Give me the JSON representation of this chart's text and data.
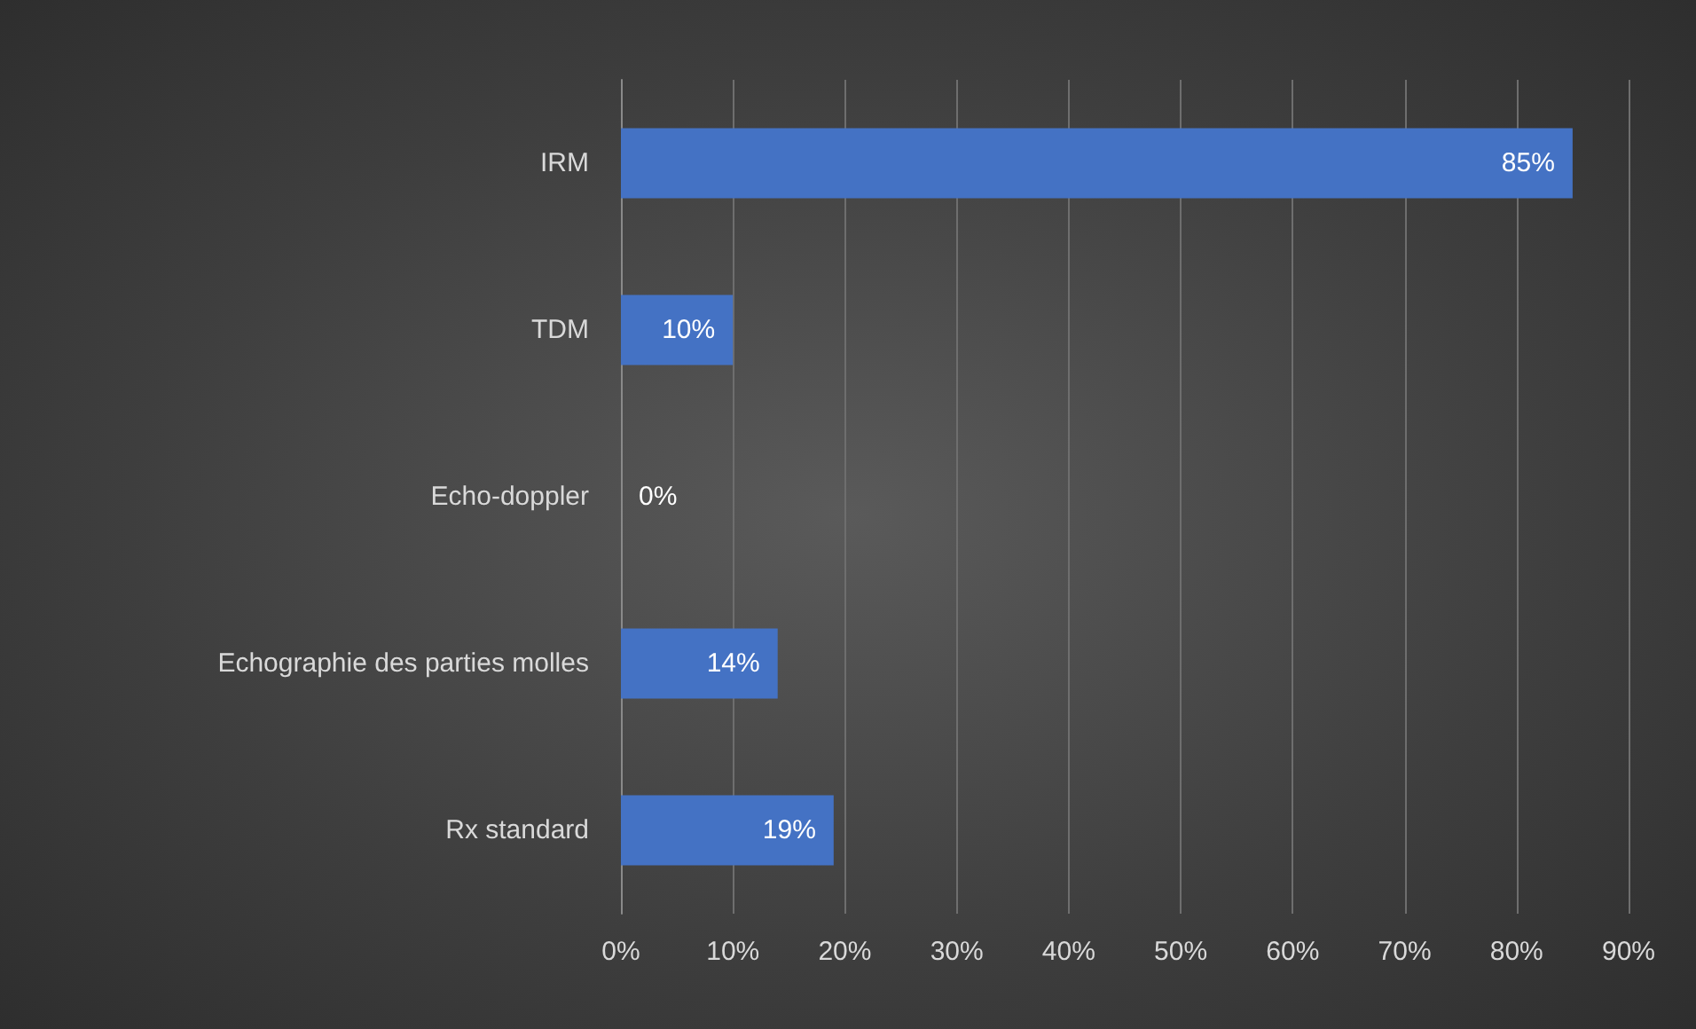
{
  "chart_data": {
    "type": "bar",
    "orientation": "horizontal",
    "categories": [
      "IRM",
      "TDM",
      "Echo-doppler",
      "Echographie des parties molles",
      "Rx standard"
    ],
    "values": [
      85,
      10,
      0,
      14,
      19
    ],
    "value_labels": [
      "85%",
      "10%",
      "0%",
      "14%",
      "19%"
    ],
    "color": "#4472c4",
    "xlim": [
      0,
      90
    ],
    "xticks": [
      {
        "value": 0,
        "label": "0%"
      },
      {
        "value": 10,
        "label": "10%"
      },
      {
        "value": 20,
        "label": "20%"
      },
      {
        "value": 30,
        "label": "30%"
      },
      {
        "value": 40,
        "label": "40%"
      },
      {
        "value": 50,
        "label": "50%"
      },
      {
        "value": 60,
        "label": "60%"
      },
      {
        "value": 70,
        "label": "70%"
      },
      {
        "value": 80,
        "label": "80%"
      },
      {
        "value": 90,
        "label": "90%"
      }
    ],
    "grid": "x"
  }
}
